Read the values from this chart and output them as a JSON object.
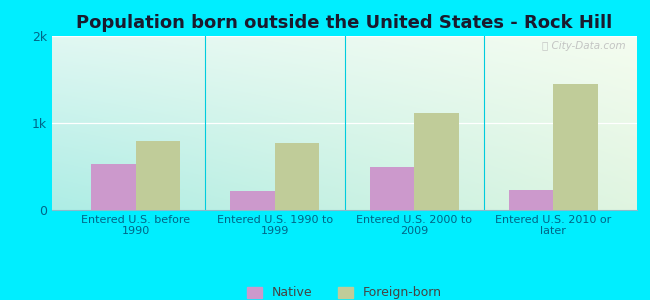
{
  "title": "Population born outside the United States - Rock Hill",
  "categories": [
    "Entered U.S. before\n1990",
    "Entered U.S. 1990 to\n1999",
    "Entered U.S. 2000 to\n2009",
    "Entered U.S. 2010 or\nlater"
  ],
  "native_values": [
    530,
    220,
    490,
    230
  ],
  "foreign_values": [
    790,
    770,
    1110,
    1450
  ],
  "native_color": "#cc99cc",
  "foreign_color": "#c0cc99",
  "background_outer": "#00eeff",
  "ylim": [
    0,
    2000
  ],
  "yticks": [
    0,
    1000,
    2000
  ],
  "ytick_labels": [
    "0",
    "1k",
    "2k"
  ],
  "bar_width": 0.32,
  "title_fontsize": 13,
  "tick_label_color": "#006688",
  "ytick_color": "#006688",
  "legend_labels": [
    "Native",
    "Foreign-born"
  ],
  "watermark": "ⓘ City-Data.com"
}
